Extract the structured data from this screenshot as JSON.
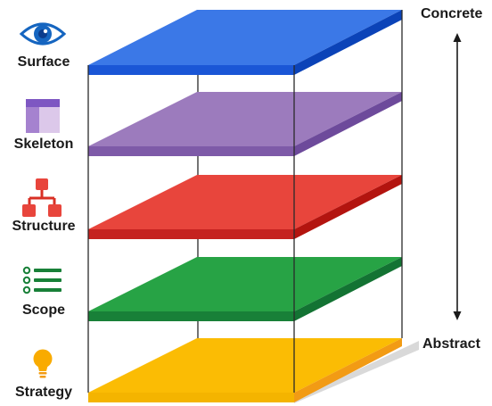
{
  "layers": [
    {
      "label": "Surface",
      "icon": "eye-icon",
      "top_color": "#3b78e7",
      "side_color": "#1a56d6"
    },
    {
      "label": "Skeleton",
      "icon": "wireframe-icon",
      "top_color": "#9c7bbd",
      "side_color": "#7e5aa8"
    },
    {
      "label": "Structure",
      "icon": "sitemap-icon",
      "top_color": "#e8453c",
      "side_color": "#c5221f"
    },
    {
      "label": "Scope",
      "icon": "checklist-icon",
      "top_color": "#27a345",
      "side_color": "#188038"
    },
    {
      "label": "Strategy",
      "icon": "lightbulb-icon",
      "top_color": "#fbbc04",
      "side_color": "#f29b14"
    }
  ],
  "axis": {
    "top_label": "Concrete",
    "bottom_label": "Abstract"
  }
}
